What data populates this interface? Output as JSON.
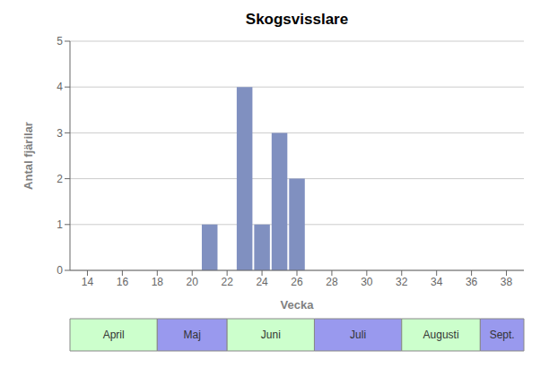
{
  "chart_data": {
    "type": "bar",
    "title": "Skogsvisslare",
    "x_label": "Vecka",
    "y_label": "Antal fjärilar",
    "x": [
      21,
      23,
      24,
      25,
      26
    ],
    "values": [
      1,
      4,
      1,
      3,
      2
    ],
    "color": "#8090c0",
    "xlim": [
      13,
      39
    ],
    "xticks": [
      14,
      16,
      18,
      20,
      22,
      24,
      26,
      28,
      30,
      32,
      34,
      36,
      38
    ],
    "ylim": [
      0,
      5
    ],
    "yticks": [
      0,
      1,
      2,
      3,
      4,
      5
    ],
    "grid": "y",
    "annotations": [
      {
        "text": "April",
        "x_start": 13,
        "x_end": 18.0,
        "color": "#ccffcc"
      },
      {
        "text": "Maj",
        "x_start": 18.0,
        "x_end": 22.0,
        "color": "#9999ee"
      },
      {
        "text": "Juni",
        "x_start": 22.0,
        "x_end": 27.0,
        "color": "#ccffcc"
      },
      {
        "text": "Juli",
        "x_start": 27.0,
        "x_end": 32.0,
        "color": "#9999ee"
      },
      {
        "text": "Augusti",
        "x_start": 32.0,
        "x_end": 36.5,
        "color": "#ccffcc"
      },
      {
        "text": "Sept.",
        "x_start": 36.5,
        "x_end": 39.0,
        "color": "#9999ee"
      }
    ]
  }
}
